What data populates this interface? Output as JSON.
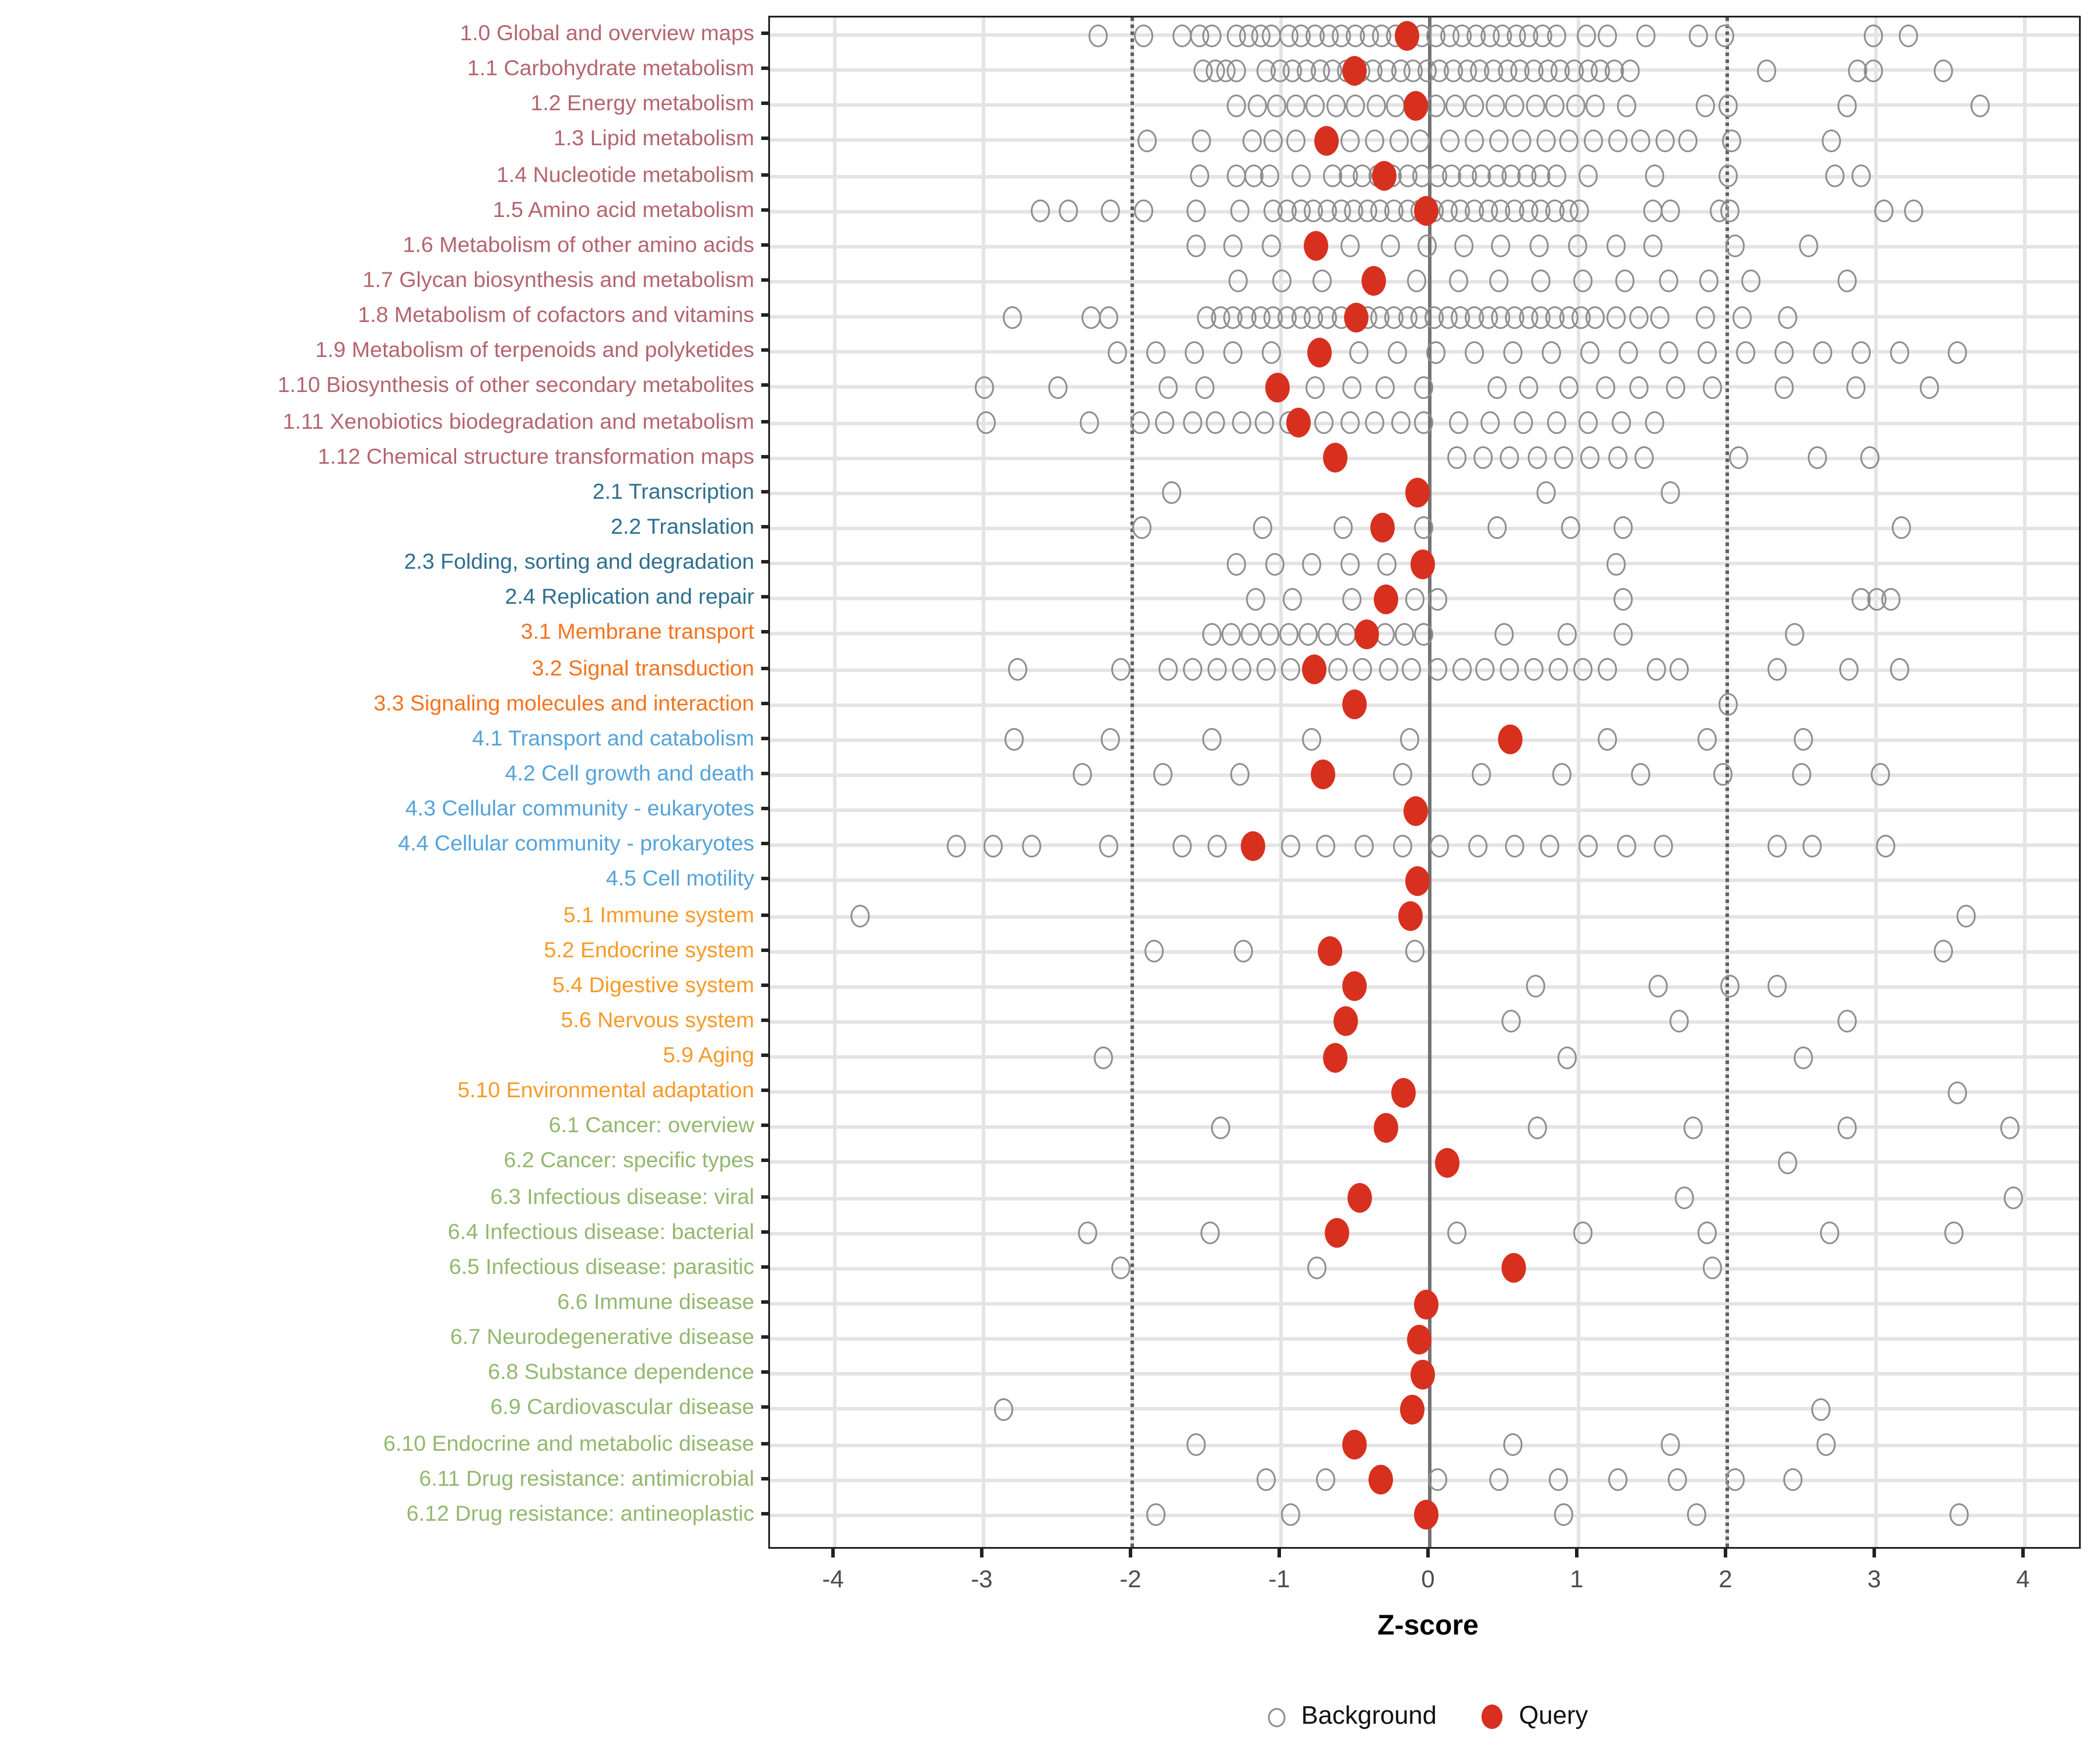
{
  "chart_data": {
    "type": "scatter",
    "title": "",
    "xlabel": "Z-score",
    "x_ticks": [
      -4,
      -3,
      -2,
      -1,
      0,
      1,
      2,
      3,
      4
    ],
    "x_range": [
      -4.4,
      4.4
    ],
    "grid": "on",
    "legend_position": "bottom-center",
    "reference_lines": {
      "dotted": [
        -2,
        2
      ],
      "solid": [
        0
      ]
    },
    "query_color": "#d7301f",
    "background_stroke": "#8e8e8e",
    "group_colors": {
      "1": "#b4656f",
      "2": "#2e6f8e",
      "3": "#f4731f",
      "4": "#55a3d9",
      "5": "#f79a28",
      "6": "#92b86e"
    },
    "legend": [
      {
        "label": "Background",
        "type": "open"
      },
      {
        "label": "Query",
        "type": "filled"
      }
    ],
    "rows": [
      {
        "label": "1.0 Global and overview maps",
        "group": "1",
        "query": -0.15,
        "background": [
          -2.23,
          -1.92,
          -1.66,
          -1.55,
          -1.47,
          -1.3,
          -1.22,
          -1.14,
          -1.06,
          -0.95,
          -0.86,
          -0.77,
          -0.68,
          -0.59,
          -0.5,
          -0.41,
          -0.32,
          -0.23,
          -0.14,
          -0.05,
          0.04,
          0.13,
          0.22,
          0.31,
          0.4,
          0.49,
          0.58,
          0.67,
          0.76,
          0.85,
          1.05,
          1.19,
          1.45,
          1.81,
          1.98,
          2.98,
          3.22
        ]
      },
      {
        "label": "1.1 Carbohydrate metabolism",
        "group": "1",
        "query": -0.51,
        "background": [
          -1.52,
          -1.44,
          -1.37,
          -1.3,
          -1.1,
          -1.01,
          -0.92,
          -0.83,
          -0.74,
          -0.65,
          -0.56,
          -0.47,
          -0.38,
          -0.29,
          -0.2,
          -0.11,
          -0.02,
          0.07,
          0.16,
          0.25,
          0.34,
          0.43,
          0.52,
          0.61,
          0.7,
          0.79,
          0.88,
          0.97,
          1.06,
          1.15,
          1.24,
          1.35,
          2.27,
          2.88,
          2.98,
          3.45
        ]
      },
      {
        "label": "1.2 Energy metabolism",
        "group": "1",
        "query": -0.1,
        "background": [
          -1.3,
          -1.16,
          -1.03,
          -0.9,
          -0.77,
          -0.63,
          -0.5,
          -0.36,
          -0.23,
          0.04,
          0.17,
          0.3,
          0.44,
          0.57,
          0.71,
          0.84,
          0.98,
          1.11,
          1.32,
          1.85,
          2.0,
          2.8,
          3.7
        ]
      },
      {
        "label": "1.3 Lipid metabolism",
        "group": "1",
        "query": -0.69,
        "background": [
          -1.9,
          -1.53,
          -1.2,
          -1.05,
          -0.9,
          -0.53,
          -0.37,
          -0.21,
          -0.06,
          0.14,
          0.3,
          0.46,
          0.62,
          0.78,
          0.94,
          1.1,
          1.26,
          1.42,
          1.58,
          1.74,
          2.03,
          2.7
        ]
      },
      {
        "label": "1.4 Nucleotide metabolism",
        "group": "1",
        "query": -0.31,
        "background": [
          -1.55,
          -1.3,
          -1.18,
          -1.08,
          -0.87,
          -0.65,
          -0.55,
          -0.45,
          -0.35,
          -0.25,
          -0.15,
          -0.05,
          0.05,
          0.15,
          0.25,
          0.35,
          0.45,
          0.55,
          0.65,
          0.75,
          0.85,
          1.07,
          1.51,
          2.0,
          2.72,
          2.9
        ]
      },
      {
        "label": "1.5 Amino acid metabolism",
        "group": "1",
        "query": -0.02,
        "background": [
          -2.62,
          -2.43,
          -2.15,
          -1.92,
          -1.57,
          -1.28,
          -1.05,
          -0.96,
          -0.87,
          -0.78,
          -0.69,
          -0.6,
          -0.51,
          -0.42,
          -0.33,
          -0.24,
          -0.15,
          -0.06,
          0.03,
          0.12,
          0.21,
          0.3,
          0.39,
          0.48,
          0.57,
          0.66,
          0.75,
          0.84,
          0.93,
          1.0,
          1.5,
          1.62,
          1.95,
          2.02,
          3.05,
          3.25
        ]
      },
      {
        "label": "1.6 Metabolism of other amino acids",
        "group": "1",
        "query": -0.77,
        "background": [
          -1.57,
          -1.32,
          -1.06,
          -0.53,
          -0.27,
          -0.02,
          0.23,
          0.48,
          0.74,
          0.99,
          1.25,
          1.5,
          2.05,
          2.55
        ]
      },
      {
        "label": "1.7 Glycan biosynthesis and metabolism",
        "group": "1",
        "query": -0.38,
        "background": [
          -1.29,
          -1.0,
          -0.72,
          -0.09,
          0.19,
          0.47,
          0.75,
          1.03,
          1.31,
          1.6,
          1.88,
          2.16,
          2.8
        ]
      },
      {
        "label": "1.8 Metabolism of cofactors and vitamins",
        "group": "1",
        "query": -0.5,
        "background": [
          -2.81,
          -2.28,
          -2.16,
          -1.5,
          -1.41,
          -1.32,
          -1.23,
          -1.14,
          -1.05,
          -0.96,
          -0.87,
          -0.78,
          -0.69,
          -0.6,
          -0.42,
          -0.33,
          -0.24,
          -0.15,
          -0.06,
          0.03,
          0.12,
          0.21,
          0.3,
          0.39,
          0.48,
          0.57,
          0.66,
          0.75,
          0.84,
          0.93,
          1.02,
          1.11,
          1.25,
          1.4,
          1.55,
          1.85,
          2.1,
          2.4
        ]
      },
      {
        "label": "1.9 Metabolism of terpenoids and polyketides",
        "group": "1",
        "query": -0.74,
        "background": [
          -2.1,
          -1.84,
          -1.58,
          -1.32,
          -1.06,
          -0.48,
          -0.22,
          0.04,
          0.3,
          0.56,
          0.82,
          1.08,
          1.34,
          1.6,
          1.86,
          2.12,
          2.38,
          2.64,
          2.9,
          3.16,
          3.55
        ]
      },
      {
        "label": "1.10 Biosynthesis of other secondary metabolites",
        "group": "1",
        "query": -1.02,
        "background": [
          -2.99,
          -2.5,
          -1.76,
          -1.51,
          -0.77,
          -0.52,
          -0.3,
          -0.04,
          0.45,
          0.66,
          0.94,
          1.18,
          1.41,
          1.65,
          1.9,
          2.38,
          2.87,
          3.36
        ]
      },
      {
        "label": "1.11 Xenobiotics biodegradation and metabolism",
        "group": "1",
        "query": -0.88,
        "background": [
          -2.98,
          -2.29,
          -1.95,
          -1.78,
          -1.6,
          -1.44,
          -1.27,
          -1.11,
          -0.95,
          -0.71,
          -0.54,
          -0.37,
          -0.2,
          -0.04,
          0.19,
          0.41,
          0.63,
          0.85,
          1.07,
          1.29,
          1.51
        ]
      },
      {
        "label": "1.12 Chemical structure transformation maps",
        "group": "1",
        "query": -0.64,
        "background": [
          0.18,
          0.36,
          0.54,
          0.72,
          0.9,
          1.08,
          1.26,
          1.44,
          2.08,
          2.6,
          2.96
        ]
      },
      {
        "label": "2.1 Transcription",
        "group": "2",
        "query": -0.08,
        "background": [
          -1.73,
          0.78,
          1.62
        ]
      },
      {
        "label": "2.2 Translation",
        "group": "2",
        "query": -0.32,
        "background": [
          -1.94,
          -1.12,
          -0.58,
          -0.04,
          0.45,
          0.95,
          1.3,
          3.17
        ]
      },
      {
        "label": "2.3 Folding, sorting and degradation",
        "group": "2",
        "query": -0.05,
        "background": [
          -1.3,
          -1.04,
          -0.8,
          -0.54,
          -0.29,
          1.25
        ]
      },
      {
        "label": "2.4 Replication and repair",
        "group": "2",
        "query": -0.29,
        "background": [
          -1.17,
          -0.92,
          -0.52,
          -0.1,
          0.05,
          1.3,
          2.9,
          3.0,
          3.1
        ]
      },
      {
        "label": "3.1 Membrane transport",
        "group": "3",
        "query": -0.42,
        "background": [
          -1.47,
          -1.34,
          -1.21,
          -1.08,
          -0.95,
          -0.82,
          -0.69,
          -0.56,
          -0.3,
          -0.17,
          -0.04,
          0.5,
          0.92,
          1.3,
          2.45
        ]
      },
      {
        "label": "3.2 Signal transduction",
        "group": "3",
        "query": -0.78,
        "background": [
          -2.77,
          -2.08,
          -1.76,
          -1.6,
          -1.43,
          -1.26,
          -1.1,
          -0.94,
          -0.62,
          -0.45,
          -0.28,
          -0.12,
          0.05,
          0.22,
          0.37,
          0.54,
          0.7,
          0.86,
          1.03,
          1.19,
          1.52,
          1.68,
          2.34,
          2.82,
          3.16
        ]
      },
      {
        "label": "3.3 Signaling molecules and interaction",
        "group": "3",
        "query": -0.51,
        "background": [
          2.0
        ]
      },
      {
        "label": "4.1 Transport and catabolism",
        "group": "4",
        "query": 0.54,
        "background": [
          -2.8,
          -2.15,
          -1.47,
          -0.8,
          -0.14,
          1.19,
          1.87,
          2.51
        ]
      },
      {
        "label": "4.2 Cell growth and death",
        "group": "4",
        "query": -0.72,
        "background": [
          -2.33,
          -1.8,
          -1.28,
          -0.18,
          0.35,
          0.89,
          1.42,
          1.97,
          2.5,
          3.03
        ]
      },
      {
        "label": "4.3 Cellular community - eukaryotes",
        "group": "4",
        "query": -0.1,
        "background": []
      },
      {
        "label": "4.4 Cellular community - prokaryotes",
        "group": "4",
        "query": -1.19,
        "background": [
          -3.18,
          -2.93,
          -2.68,
          -2.16,
          -1.67,
          -1.43,
          -0.94,
          -0.7,
          -0.44,
          -0.18,
          0.07,
          0.32,
          0.57,
          0.81,
          1.07,
          1.32,
          1.57,
          2.33,
          2.57,
          3.07
        ]
      },
      {
        "label": "4.5 Cell motility",
        "group": "4",
        "query": -0.08,
        "background": []
      },
      {
        "label": "5.1 Immune system",
        "group": "5",
        "query": -0.13,
        "background": [
          -3.83,
          3.6
        ]
      },
      {
        "label": "5.2 Endocrine system",
        "group": "5",
        "query": -0.67,
        "background": [
          -1.85,
          -1.25,
          -0.1,
          3.45
        ]
      },
      {
        "label": "5.4 Digestive system",
        "group": "5",
        "query": -0.51,
        "background": [
          0.71,
          1.53,
          2.02,
          2.34
        ]
      },
      {
        "label": "5.6 Nervous system",
        "group": "5",
        "query": -0.56,
        "background": [
          0.55,
          1.68,
          2.81
        ]
      },
      {
        "label": "5.9 Aging",
        "group": "5",
        "query": -0.63,
        "background": [
          -2.2,
          0.92,
          2.51
        ]
      },
      {
        "label": "5.10 Environmental adaptation",
        "group": "5",
        "query": -0.18,
        "background": [
          3.55
        ]
      },
      {
        "label": "6.1 Cancer: overview",
        "group": "6",
        "query": -0.3,
        "background": [
          -1.41,
          0.72,
          1.77,
          2.8,
          3.9
        ]
      },
      {
        "label": "6.2 Cancer: specific types",
        "group": "6",
        "query": 0.12,
        "background": [
          2.4
        ]
      },
      {
        "label": "6.3 Infectious disease: viral",
        "group": "6",
        "query": -0.47,
        "background": [
          1.71,
          3.92
        ]
      },
      {
        "label": "6.4 Infectious disease: bacterial",
        "group": "6",
        "query": -0.62,
        "background": [
          -2.3,
          -1.48,
          0.18,
          1.03,
          1.86,
          2.69,
          3.52
        ]
      },
      {
        "label": "6.5 Infectious disease: parasitic",
        "group": "6",
        "query": 0.57,
        "background": [
          -2.08,
          -0.76,
          1.9
        ]
      },
      {
        "label": "6.6 Immune disease",
        "group": "6",
        "query": -0.02,
        "background": []
      },
      {
        "label": "6.7 Neurodegenerative disease",
        "group": "6",
        "query": -0.07,
        "background": []
      },
      {
        "label": "6.8 Substance dependence",
        "group": "6",
        "query": -0.05,
        "background": []
      },
      {
        "label": "6.9 Cardiovascular disease",
        "group": "6",
        "query": -0.12,
        "background": [
          -2.87,
          2.63
        ]
      },
      {
        "label": "6.10 Endocrine and metabolic disease",
        "group": "6",
        "query": -0.51,
        "background": [
          -1.57,
          0.56,
          1.62,
          2.67
        ]
      },
      {
        "label": "6.11 Drug resistance: antimicrobial",
        "group": "6",
        "query": -0.33,
        "background": [
          -1.1,
          -0.7,
          0.05,
          0.47,
          0.86,
          1.27,
          1.66,
          2.05,
          2.44
        ]
      },
      {
        "label": "6.12 Drug resistance: antineoplastic",
        "group": "6",
        "query": -0.02,
        "background": [
          -1.84,
          -0.93,
          0.9,
          1.79,
          3.56
        ]
      }
    ]
  }
}
